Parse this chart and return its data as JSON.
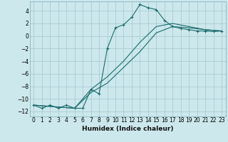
{
  "title": "",
  "xlabel": "Humidex (Indice chaleur)",
  "ylabel": "",
  "background_color": "#cce8ec",
  "grid_color": "#aaccd4",
  "line_color": "#1a6b6b",
  "xlim": [
    -0.5,
    23.5
  ],
  "ylim": [
    -12.8,
    5.5
  ],
  "xticks": [
    0,
    1,
    2,
    3,
    4,
    5,
    6,
    7,
    8,
    9,
    10,
    11,
    12,
    13,
    14,
    15,
    16,
    17,
    18,
    19,
    20,
    21,
    22,
    23
  ],
  "yticks": [
    -12,
    -10,
    -8,
    -6,
    -4,
    -2,
    0,
    2,
    4
  ],
  "series0": {
    "x": [
      0,
      1,
      2,
      3,
      4,
      5,
      6,
      7,
      8,
      9,
      10,
      11,
      12,
      13,
      14,
      15,
      16,
      17,
      18,
      19,
      20,
      21,
      22,
      23
    ],
    "y": [
      -11,
      -11.5,
      -11,
      -11.5,
      -11,
      -11.5,
      -11.5,
      -8.5,
      -9.2,
      -2,
      1.3,
      1.8,
      3.0,
      5.0,
      4.5,
      4.2,
      2.5,
      1.5,
      1.2,
      1.0,
      0.8,
      0.8,
      0.7,
      0.8
    ]
  },
  "series1": {
    "x": [
      0,
      23
    ],
    "y": [
      -11,
      0.8
    ]
  },
  "series2": {
    "x": [
      0,
      23
    ],
    "y": [
      -11,
      0.8
    ]
  },
  "line1_pts_x": [
    0,
    5,
    7,
    9,
    11,
    13,
    15,
    17,
    19,
    21,
    23
  ],
  "line1_pts_y": [
    -11,
    -11.5,
    -8.5,
    -6.5,
    -4.0,
    -1.0,
    1.5,
    2.0,
    1.5,
    1.0,
    0.8
  ],
  "line2_pts_x": [
    0,
    5,
    7,
    9,
    11,
    13,
    15,
    17,
    19,
    21,
    23
  ],
  "line2_pts_y": [
    -11,
    -11.5,
    -9.0,
    -7.5,
    -5.0,
    -2.5,
    0.5,
    1.5,
    1.3,
    1.0,
    0.8
  ]
}
